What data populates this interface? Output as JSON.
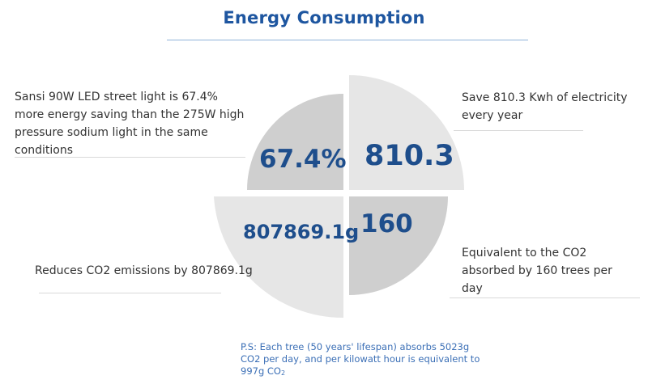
{
  "title": "Energy Consumption",
  "quadrants": {
    "top_left": {
      "value": "67.4%",
      "description": "Sansi 90W LED street light is 67.4% more energy saving than the 275W high pressure sodium light in the same conditions"
    },
    "top_right": {
      "value": "810.3",
      "description": "Save 810.3 Kwh of electricity every year"
    },
    "bottom_left": {
      "value": "807869.1g",
      "description": "Reduces CO2 emissions by 807869.1g"
    },
    "bottom_right": {
      "value": "160",
      "description": "Equivalent to the CO2 absorbed by 160 trees per day"
    }
  },
  "note": {
    "text": "P.S:  Each tree (50 years' lifespan) absorbs 5023g CO2 per day, and per kilowatt hour is equivalent to 997g CO",
    "subscript": "2"
  },
  "colors": {
    "accent_blue": "#1e56a0",
    "value_blue": "#1e4e8c",
    "note_blue": "#3b6fb6",
    "slice_dark": "#cfcfcf",
    "slice_light": "#e6e6e6"
  }
}
